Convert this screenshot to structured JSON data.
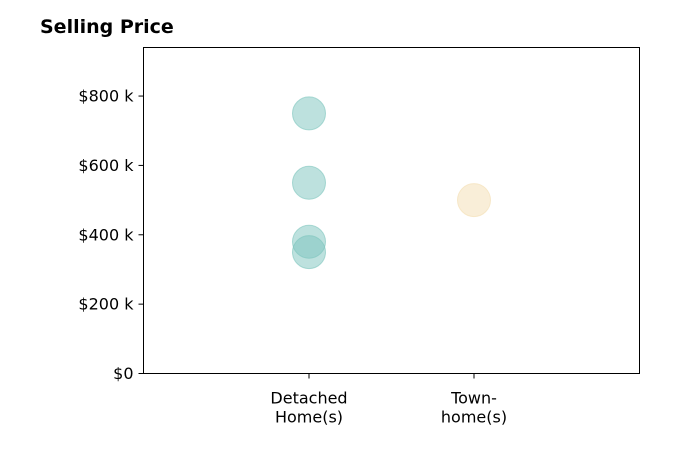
{
  "chart_data": {
    "type": "scatter",
    "title": "Selling Price",
    "xlabel": "",
    "ylabel": "",
    "categories": [
      [
        "Detached",
        "Home(s)"
      ],
      [
        "Town-",
        "home(s)"
      ]
    ],
    "ylim": [
      0,
      940000
    ],
    "yticks": [
      {
        "value": 0,
        "label": "$0"
      },
      {
        "value": 200000,
        "label": "$200 k"
      },
      {
        "value": 400000,
        "label": "$400 k"
      },
      {
        "value": 600000,
        "label": "$600 k"
      },
      {
        "value": 800000,
        "label": "$800 k"
      }
    ],
    "series": [
      {
        "category": 0,
        "color": "#7cc4bd",
        "values": [
          750000,
          550000,
          380000,
          350000
        ]
      },
      {
        "category": 1,
        "color": "#f3ddb1",
        "values": [
          500000
        ]
      }
    ],
    "grid": false,
    "legend": "none"
  }
}
